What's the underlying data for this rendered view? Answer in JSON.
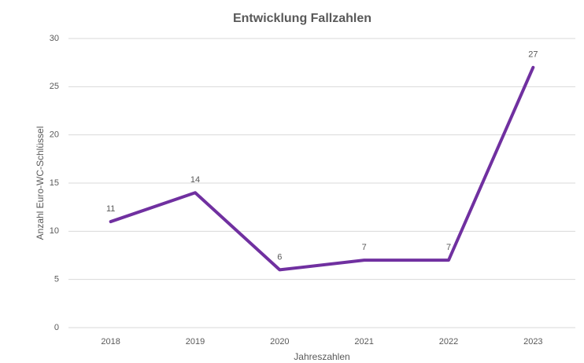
{
  "chart_data": {
    "type": "line",
    "title": "Entwicklung Fallzahlen",
    "x_label": "Jahreszahlen",
    "y_label": "Anzahl Euro-WC-Schlüssel",
    "categories": [
      "2018",
      "2019",
      "2020",
      "2021",
      "2022",
      "2023"
    ],
    "values": [
      11,
      14,
      6,
      7,
      7,
      27
    ],
    "color": "#7030a0",
    "ylim": [
      0,
      30
    ],
    "yticks": [
      0,
      5,
      10,
      15,
      20,
      25,
      30
    ],
    "grid": true
  }
}
